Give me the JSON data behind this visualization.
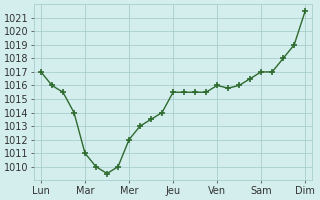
{
  "x_values": [
    0,
    0.5,
    1,
    1.5,
    2,
    2.5,
    3,
    3.5,
    4,
    4.5,
    5,
    5.5,
    6,
    6.5,
    7,
    7.5,
    8,
    8.5,
    9,
    9.5,
    10,
    10.5,
    11,
    11.5,
    12
  ],
  "y_values": [
    1017,
    1016,
    1015.5,
    1014,
    1011,
    1010,
    1009.5,
    1010,
    1012,
    1013,
    1013.5,
    1014,
    1015.5,
    1015.5,
    1015.5,
    1015.5,
    1016,
    1015.8,
    1016,
    1016.5,
    1017,
    1017,
    1018,
    1019,
    1021.5
  ],
  "xtick_positions": [
    0,
    2,
    4,
    6,
    8,
    10,
    12
  ],
  "xtick_labels": [
    "Lun",
    "Mar",
    "Mer",
    "Jeu",
    "Ven",
    "Sam",
    "Dim"
  ],
  "ytick_min": 1010,
  "ytick_max": 1021,
  "ytick_step": 1,
  "ymin": 1009,
  "ymax": 1022,
  "line_color": "#2d6a2d",
  "marker": "+",
  "bg_color": "#d4eeee",
  "grid_color": "#a0c8c8"
}
